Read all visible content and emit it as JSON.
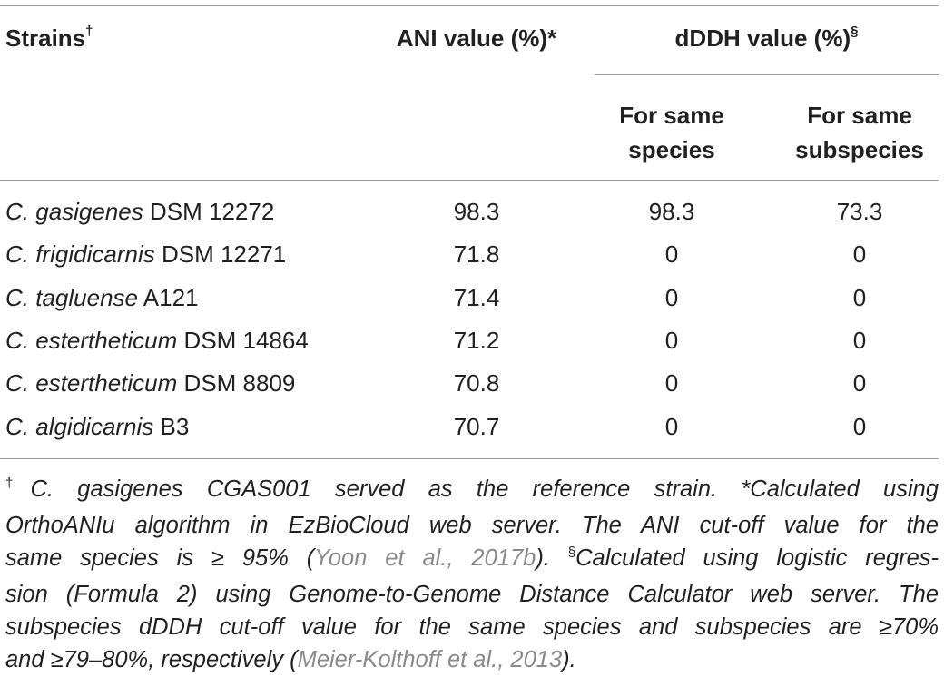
{
  "table": {
    "headers": {
      "strains": "Strains",
      "strains_sup": "†",
      "ani": "ANI value (%)*",
      "dddh": "dDDH value (%)",
      "dddh_sup": "§",
      "same_species_1": "For same",
      "same_species_2": "species",
      "same_subspecies_1": "For same",
      "same_subspecies_2": "subspecies"
    },
    "rows": [
      {
        "genus": "C.",
        "species": "gasigenes",
        "strain": "DSM 12272",
        "ani": "98.3",
        "same_species": "98.3",
        "same_subspecies": "73.3"
      },
      {
        "genus": "C.",
        "species": "frigidicarnis",
        "strain": "DSM 12271",
        "ani": "71.8",
        "same_species": "0",
        "same_subspecies": "0"
      },
      {
        "genus": "C.",
        "species": "tagluense",
        "strain": "A121",
        "ani": "71.4",
        "same_species": "0",
        "same_subspecies": "0"
      },
      {
        "genus": "C.",
        "species": "estertheticum",
        "strain": "DSM 14864",
        "ani": "71.2",
        "same_species": "0",
        "same_subspecies": "0"
      },
      {
        "genus": "C.",
        "species": "estertheticum",
        "strain": "DSM 8809",
        "ani": "70.8",
        "same_species": "0",
        "same_subspecies": "0"
      },
      {
        "genus": "C.",
        "species": "algidicarnis",
        "strain": "B3",
        "ani": "70.7",
        "same_species": "0",
        "same_subspecies": "0"
      }
    ]
  },
  "footnote": {
    "l1_sup": "†",
    "l1": "C. gasigenes CGAS001 served as the reference strain. *Calculated using",
    "l2": "OrthoANIu algorithm in EzBioCloud web server. The ANI cut-off value for the",
    "l3a": "same species is ≥ 95% (",
    "l3ref": "Yoon et al., 2017b",
    "l3b": "). ",
    "l3_sup": "§",
    "l3c": "Calculated using logistic regres-",
    "l4": "sion (Formula 2) using Genome-to-Genome Distance Calculator web server. The",
    "l5": "subspecies dDDH cut-off value for the same species and subspecies are ≥70%",
    "l6a": "and ≥79–80%, respectively (",
    "l6ref": "Meier-Kolthoff et al., 2013",
    "l6b": ")."
  }
}
